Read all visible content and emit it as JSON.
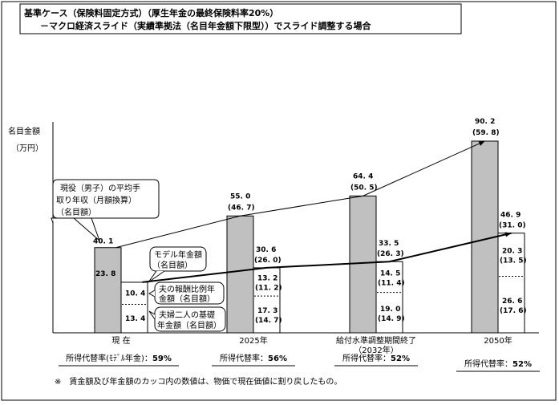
{
  "title": {
    "line1": "基準ケース（保険料固定方式）（厚生年金の最終保険料率20%）",
    "line2": "－マクロ経済スライド（実績準拠法（名目年金額下限型））でスライド調整する場合"
  },
  "y_axis": {
    "label1": "名目金額",
    "label2": "（万円）"
  },
  "callouts": {
    "wage": [
      "現役（男子）の平均手",
      "取り年収（月額換算）",
      "（名目額）"
    ],
    "model": [
      "モデル年金額",
      "（名目額）"
    ],
    "earnings": [
      "夫の報酬比例年",
      "金額（名目額）"
    ],
    "basic": [
      "夫婦二人の基礎",
      "年金額（名目額）"
    ]
  },
  "footnote": "※　賃金額及び年金額のカッコ内の数値は、物価で現在価値に割り戻したもの。",
  "colors": {
    "wage_bar": "#c0c0c0",
    "model_bar": "#ffffff"
  },
  "chart_data": {
    "type": "bar",
    "title": "基準ケース（保険料固定方式）",
    "ylabel": "名目金額（万円）",
    "categories": [
      "現 在",
      "2025年",
      "給付水準調整期間終了",
      "2050年"
    ],
    "category_sub": [
      "",
      "",
      "（2032年）",
      ""
    ],
    "series": [
      {
        "name": "現役（男子）の平均手取り年収（月額換算）（名目額）",
        "values": [
          40.1,
          55.0,
          64.4,
          90.2
        ],
        "labels": [
          "40. 1",
          "55. 0",
          "64. 4",
          "90. 2"
        ],
        "real_labels": [
          "",
          "(46. 7)",
          "(50. 5)",
          "(59. 8)"
        ]
      },
      {
        "name": "モデル年金額（名目額）",
        "values": [
          23.8,
          30.6,
          33.5,
          46.9
        ],
        "labels": [
          "23. 8",
          "30. 6",
          "33. 5",
          "46. 9"
        ],
        "real_labels": [
          "",
          "(26. 0)",
          "(26. 3)",
          "(31. 0)"
        ]
      },
      {
        "name": "夫の報酬比例年金額（名目額）",
        "values": [
          10.4,
          13.2,
          14.5,
          20.3
        ],
        "labels": [
          "10. 4",
          "13. 2",
          "14. 5",
          "20. 3"
        ],
        "real_labels": [
          "",
          "(11. 2)",
          "(11. 4)",
          "(13. 5)"
        ]
      },
      {
        "name": "夫婦二人の基礎年金額（名目額）",
        "values": [
          13.4,
          17.3,
          19.0,
          26.6
        ],
        "labels": [
          "13. 4",
          "17. 3",
          "19. 0",
          "26. 6"
        ],
        "real_labels": [
          "",
          "(14. 7)",
          "(14. 9)",
          "(17. 6)"
        ]
      }
    ],
    "replacement_rates": [
      {
        "label": "所得代替率(ﾓﾃﾞﾙ年金)：",
        "value": "59%"
      },
      {
        "label": "所得代替率：",
        "value": "56%"
      },
      {
        "label": "所得代替率：",
        "value": "52%"
      },
      {
        "label": "所得代替率：",
        "value": "52%"
      }
    ]
  }
}
